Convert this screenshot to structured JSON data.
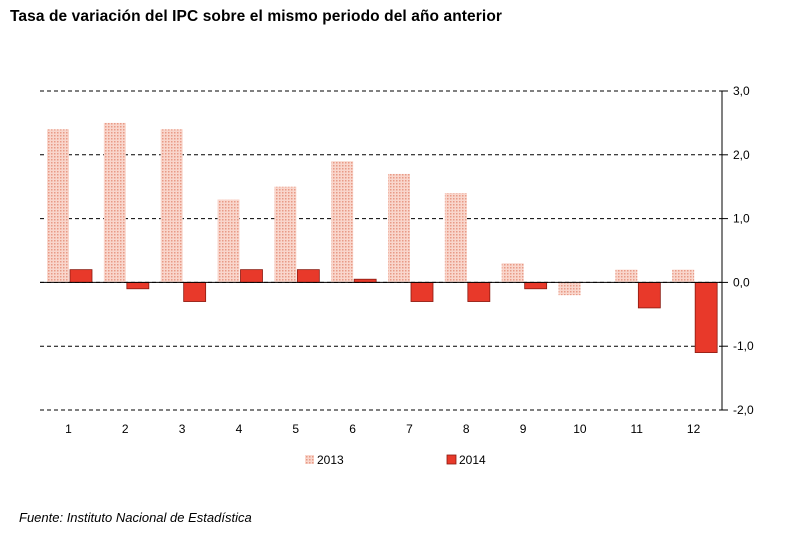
{
  "title": "Tasa de variación del IPC sobre el mismo periodo del año anterior",
  "source": "Fuente: Instituto Nacional de Estadística",
  "chart_data": {
    "type": "bar",
    "title": "Tasa de variación del IPC sobre el mismo periodo del año anterior",
    "categories": [
      "1",
      "2",
      "3",
      "4",
      "5",
      "6",
      "7",
      "8",
      "9",
      "10",
      "11",
      "12"
    ],
    "series": [
      {
        "name": "2013",
        "color": "#f4b8a8",
        "pattern": "dotted",
        "values": [
          2.4,
          2.5,
          2.4,
          1.3,
          1.5,
          1.9,
          1.7,
          1.4,
          0.3,
          -0.2,
          0.2,
          0.2
        ]
      },
      {
        "name": "2014",
        "color": "#e8392a",
        "values": [
          0.2,
          -0.1,
          -0.3,
          0.2,
          0.2,
          0.05,
          -0.3,
          -0.3,
          -0.1,
          null,
          -0.4,
          -1.1
        ]
      }
    ],
    "xlabel": "",
    "ylabel": "",
    "ylim": [
      -2.0,
      3.0
    ],
    "yticks": [
      "3,0",
      "2,0",
      "1,0",
      "0,0",
      "-1,0",
      "-2,0"
    ],
    "ytick_values": [
      3,
      2,
      1,
      0,
      -1,
      -2
    ],
    "y_axis_position": "right",
    "grid": "horizontal-dashed",
    "legend_position": "bottom"
  }
}
